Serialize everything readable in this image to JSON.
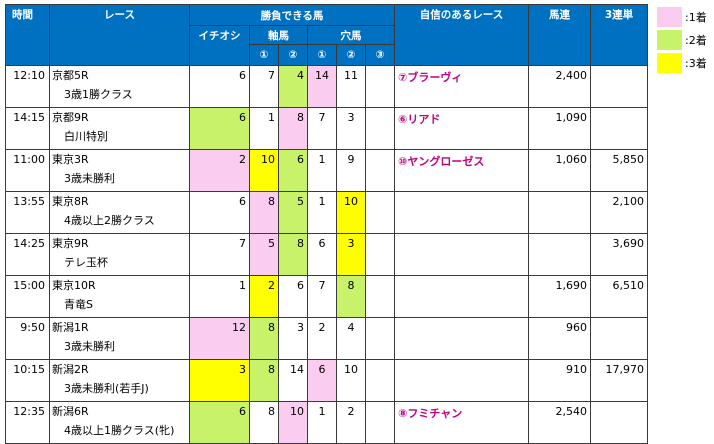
{
  "header": {
    "time": "時間",
    "race": "レース",
    "horses": "勝負できる馬",
    "confident": "自信のあるレース",
    "umaren": "馬連",
    "sanrentan": "3連単",
    "ichioshi": "イチオシ",
    "jikuba": "軸馬",
    "anaba": "穴馬",
    "c1": "①",
    "c2": "②",
    "c3": "③"
  },
  "colors": {
    "first": "#f9ccf0",
    "second": "#c8f26a",
    "third": "#ffff00",
    "header": "#0070c0",
    "confident_text": "#c00080"
  },
  "legend": [
    {
      "label": ":1着",
      "color": "#f9ccf0"
    },
    {
      "label": ":2着",
      "color": "#c8f26a"
    },
    {
      "label": ":3着",
      "color": "#ffff00"
    }
  ],
  "rows": [
    {
      "time": "12:10",
      "race": "京都5R",
      "cond": "3歳1勝クラス",
      "cells": [
        "6",
        "7",
        "4",
        "14",
        "11",
        ""
      ],
      "confident": "⑦ブラーヴィ",
      "umaren": "2,400",
      "sanrentan": ""
    },
    {
      "time": "14:15",
      "race": "京都9R",
      "cond": "白川特別",
      "cells": [
        "6",
        "1",
        "8",
        "7",
        "3",
        ""
      ],
      "confident": "⑥リアド",
      "umaren": "1,090",
      "sanrentan": ""
    },
    {
      "time": "11:00",
      "race": "東京3R",
      "cond": "3歳未勝利",
      "cells": [
        "2",
        "10",
        "6",
        "1",
        "9",
        ""
      ],
      "confident": "⑩ヤングローゼス",
      "umaren": "1,060",
      "sanrentan": "5,850"
    },
    {
      "time": "13:55",
      "race": "東京8R",
      "cond": "4歳以上2勝クラス",
      "cells": [
        "6",
        "8",
        "5",
        "1",
        "10",
        ""
      ],
      "confident": "",
      "umaren": "",
      "sanrentan": "2,100"
    },
    {
      "time": "14:25",
      "race": "東京9R",
      "cond": "テレ玉杯",
      "cells": [
        "7",
        "5",
        "8",
        "6",
        "3",
        ""
      ],
      "confident": "",
      "umaren": "",
      "sanrentan": "3,690"
    },
    {
      "time": "15:00",
      "race": "東京10R",
      "cond": "青竜S",
      "cells": [
        "1",
        "2",
        "6",
        "7",
        "8",
        ""
      ],
      "confident": "",
      "umaren": "1,690",
      "sanrentan": "6,510"
    },
    {
      "time": "9:50",
      "race": "新潟1R",
      "cond": "3歳未勝利",
      "cells": [
        "12",
        "8",
        "3",
        "2",
        "4",
        ""
      ],
      "confident": "",
      "umaren": "960",
      "sanrentan": ""
    },
    {
      "time": "10:15",
      "race": "新潟2R",
      "cond": "3歳未勝利(若手J)",
      "cells": [
        "3",
        "8",
        "14",
        "6",
        "10",
        ""
      ],
      "confident": "",
      "umaren": "910",
      "sanrentan": "17,970"
    },
    {
      "time": "12:35",
      "race": "新潟6R",
      "cond": "4歳以上1勝クラス(牝)",
      "cells": [
        "6",
        "8",
        "10",
        "1",
        "2",
        ""
      ],
      "confident": "⑧フミチャン",
      "umaren": "2,540",
      "sanrentan": ""
    }
  ],
  "highlights": [
    [
      null,
      null,
      "second",
      "first",
      null,
      null
    ],
    [
      "second",
      null,
      "first",
      null,
      null,
      null
    ],
    [
      "first",
      "third",
      "second",
      null,
      null,
      null
    ],
    [
      null,
      "first",
      "second",
      null,
      "third",
      null
    ],
    [
      null,
      "first",
      "second",
      null,
      "third",
      null
    ],
    [
      null,
      "third",
      null,
      null,
      "second",
      null
    ],
    [
      "first",
      "second",
      null,
      null,
      null,
      null
    ],
    [
      "third",
      "second",
      null,
      "first",
      null,
      null
    ],
    [
      "second",
      null,
      "first",
      null,
      null,
      null
    ]
  ]
}
